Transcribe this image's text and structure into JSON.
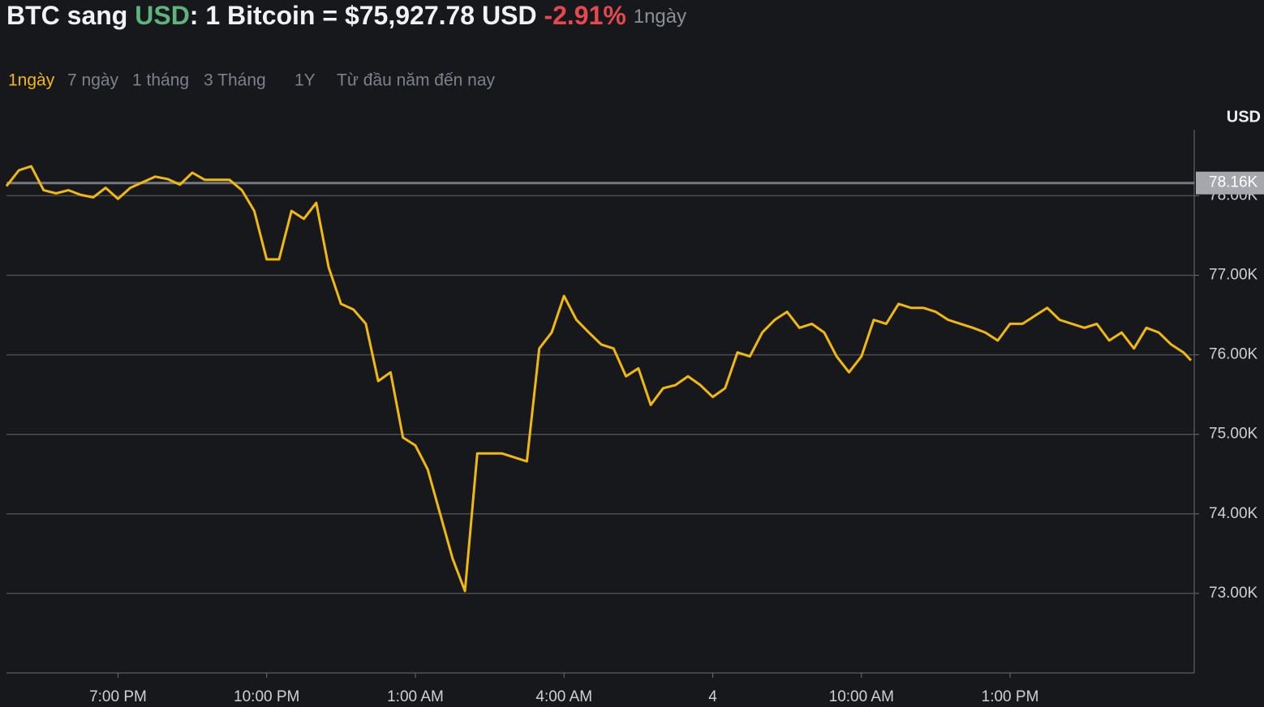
{
  "header": {
    "title_parts": [
      "BTC sang",
      "USD",
      ": 1 Bitcoin = $75,927.78 USD",
      "-2.91%",
      "1ngày"
    ],
    "tabs": [
      "1ngày",
      "7 ngày",
      "1 tháng",
      "3 Tháng",
      "1Y",
      "Từ đầu năm đến nay"
    ]
  },
  "chart_data": {
    "type": "line",
    "y_unit": "USD",
    "color": "#f0b90b",
    "grid": true,
    "x": [
      16.75,
      17,
      17.25,
      17.5,
      17.75,
      18,
      18.25,
      18.5,
      18.75,
      19,
      19.25,
      19.5,
      19.75,
      20,
      20.25,
      20.5,
      20.75,
      21,
      21.25,
      21.5,
      21.75,
      22,
      22.25,
      22.5,
      22.75,
      23,
      23.25,
      23.5,
      23.75,
      24,
      24.25,
      24.5,
      24.75,
      25,
      25.25,
      25.5,
      25.75,
      26,
      26.25,
      26.5,
      26.75,
      27,
      27.25,
      27.5,
      27.75,
      28,
      28.25,
      28.5,
      28.75,
      29,
      29.25,
      29.5,
      29.75,
      30,
      30.25,
      30.5,
      30.75,
      31,
      31.25,
      31.5,
      31.75,
      32,
      32.25,
      32.5,
      32.75,
      33,
      33.25,
      33.5,
      33.75,
      34,
      34.25,
      34.5,
      34.75,
      35,
      35.25,
      35.5,
      35.75,
      36,
      36.25,
      36.5,
      36.75,
      37,
      37.25,
      37.5,
      37.75,
      38,
      38.25,
      38.5,
      38.75,
      39,
      39.25,
      39.5,
      39.75,
      40,
      40.25,
      40.5,
      40.65
    ],
    "values": [
      78120,
      78320,
      78370,
      78070,
      78030,
      78070,
      78010,
      77980,
      78100,
      77960,
      78100,
      78170,
      78240,
      78210,
      78140,
      78290,
      78200,
      78200,
      78200,
      78070,
      77810,
      77200,
      77200,
      77810,
      77710,
      77910,
      77100,
      76640,
      76570,
      76390,
      75670,
      75780,
      74960,
      74860,
      74560,
      74000,
      73440,
      73030,
      74760,
      74760,
      74760,
      74710,
      74660,
      76080,
      76280,
      76740,
      76440,
      76280,
      76130,
      76080,
      75730,
      75830,
      75370,
      75580,
      75620,
      75730,
      75620,
      75470,
      75580,
      76030,
      75980,
      76280,
      76440,
      76540,
      76340,
      76390,
      76280,
      75980,
      75780,
      75980,
      76440,
      76390,
      76640,
      76590,
      76590,
      76540,
      76440,
      76390,
      76340,
      76280,
      76180,
      76390,
      76390,
      76490,
      76590,
      76440,
      76390,
      76340,
      76390,
      76180,
      76280,
      76080,
      76340,
      76280,
      76130,
      76030,
      75930
    ],
    "xlim": [
      16.75,
      40.65
    ],
    "xticks": [
      {
        "value": 19,
        "label": "7:00 PM"
      },
      {
        "value": 22,
        "label": "10:00 PM"
      },
      {
        "value": 25,
        "label": "1:00 AM"
      },
      {
        "value": 28,
        "label": "4:00 AM"
      },
      {
        "value": 31,
        "label": "4"
      },
      {
        "value": 34,
        "label": "10:00 AM"
      },
      {
        "value": 37,
        "label": "1:00 PM"
      }
    ],
    "ylim": [
      72000,
      78830
    ],
    "yticks": [
      {
        "value": 73000,
        "label": "73.00K"
      },
      {
        "value": 74000,
        "label": "74.00K"
      },
      {
        "value": 75000,
        "label": "75.00K"
      },
      {
        "value": 76000,
        "label": "76.00K"
      },
      {
        "value": 77000,
        "label": "77.00K"
      },
      {
        "value": 78000,
        "label": "78.00K"
      }
    ],
    "reference_line": {
      "value": 78160,
      "label": "78.16K"
    }
  }
}
